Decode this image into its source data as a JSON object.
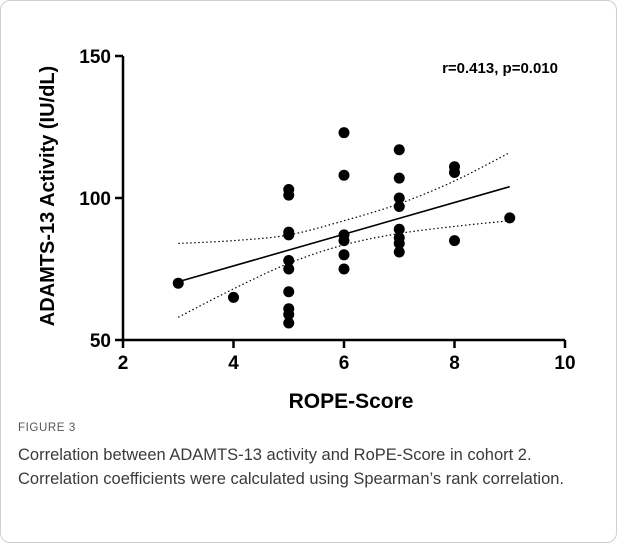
{
  "figure_label": "FIGURE 3",
  "caption": "Correlation between ADAMTS-13 activity and RoPE-Score in cohort 2. Correlation coefficients were calculated using Spearman’s rank correlation.",
  "chart_data": {
    "type": "scatter",
    "title": "",
    "xlabel": "ROPE-Score",
    "ylabel": "ADAMTS-13 Activity (IU/dL)",
    "xlim": [
      2,
      10
    ],
    "ylim": [
      50,
      150
    ],
    "xticks": [
      2,
      4,
      6,
      8,
      10
    ],
    "yticks": [
      50,
      100,
      150
    ],
    "annotation": "r=0.413, p=0.010",
    "grid": false,
    "legend": "none",
    "points": [
      {
        "x": 3,
        "y": 70
      },
      {
        "x": 4,
        "y": 65
      },
      {
        "x": 5,
        "y": 103
      },
      {
        "x": 5,
        "y": 101
      },
      {
        "x": 5,
        "y": 88
      },
      {
        "x": 5,
        "y": 87
      },
      {
        "x": 5,
        "y": 78
      },
      {
        "x": 5,
        "y": 75
      },
      {
        "x": 5,
        "y": 67
      },
      {
        "x": 5,
        "y": 61
      },
      {
        "x": 5,
        "y": 59
      },
      {
        "x": 5,
        "y": 56
      },
      {
        "x": 6,
        "y": 123
      },
      {
        "x": 6,
        "y": 108
      },
      {
        "x": 6,
        "y": 87
      },
      {
        "x": 6,
        "y": 85
      },
      {
        "x": 6,
        "y": 80
      },
      {
        "x": 6,
        "y": 75
      },
      {
        "x": 7,
        "y": 117
      },
      {
        "x": 7,
        "y": 107
      },
      {
        "x": 7,
        "y": 100
      },
      {
        "x": 7,
        "y": 97
      },
      {
        "x": 7,
        "y": 89
      },
      {
        "x": 7,
        "y": 86
      },
      {
        "x": 7,
        "y": 84
      },
      {
        "x": 7,
        "y": 81
      },
      {
        "x": 8,
        "y": 111
      },
      {
        "x": 8,
        "y": 109
      },
      {
        "x": 8,
        "y": 85
      },
      {
        "x": 9,
        "y": 93
      }
    ],
    "fit_line": {
      "x": [
        3,
        9
      ],
      "y": [
        70.5,
        104
      ]
    },
    "ci_upper": {
      "x": [
        3,
        4,
        5,
        6,
        7,
        8,
        9
      ],
      "y": [
        84,
        85,
        87,
        92,
        98,
        106,
        116
      ]
    },
    "ci_lower": {
      "x": [
        3,
        4,
        5,
        6,
        7,
        8,
        9
      ],
      "y": [
        58,
        68,
        77,
        83.5,
        87.5,
        90,
        92
      ]
    },
    "colors": {
      "points": "#000000",
      "line": "#000000",
      "axis": "#000000"
    }
  }
}
